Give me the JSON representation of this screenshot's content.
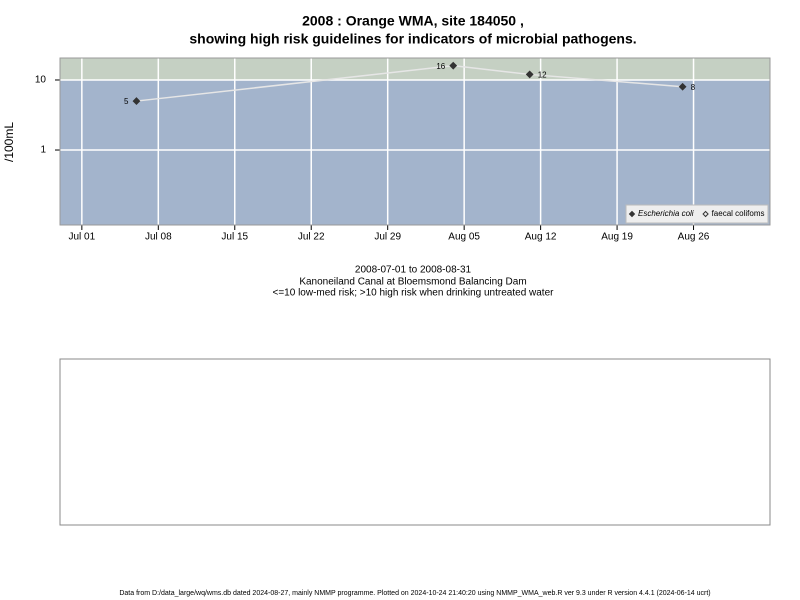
{
  "chart_data": {
    "type": "line",
    "title": "2008 : Orange WMA, site 184050 ,",
    "subtitle": "showing high risk guidelines for indicators of microbial pathogens.",
    "y_label": "/100mL",
    "x_label_lines": [
      "2008-07-01 to 2008-08-31",
      "Kanoneiland Canal at Bloemsmond Balancing Dam",
      "<=10 low-med risk; >10 high risk when drinking untreated water"
    ],
    "x": [
      "Jul 06",
      "Aug 04",
      "Aug 11",
      "Aug 25"
    ],
    "series": [
      {
        "name": "Escherichia coli",
        "color": "#333333",
        "marker": "filled-diamond",
        "values": [
          5,
          16,
          12,
          8
        ]
      },
      {
        "name": "faecal colifoms",
        "color": "#333333",
        "marker": "hollow-diamond",
        "values": [
          null,
          null,
          null,
          null
        ]
      }
    ],
    "line_color": "#e6e6e6",
    "log_y": true,
    "ylim": [
      0.085,
      20.6
    ],
    "yticks": [
      1,
      10
    ],
    "xlim": [
      "Jun 29",
      "Sep 02"
    ],
    "xticks": [
      "Jul 01",
      "Jul 08",
      "Jul 15",
      "Jul 22",
      "Jul 29",
      "Aug 05",
      "Aug 12",
      "Aug 19",
      "Aug 26"
    ],
    "threshold": 10,
    "low_color": "#a3b4cc",
    "high_color": "#c5d0c3",
    "grid": true,
    "legend_position": "bottom-right"
  },
  "footer": "Data from D:/data_large/wq/wms.db dated 2024-08-27, mainly NMMP programme. Plotted on 2024-10-24 21:40:20 using NMMP_WMA_web.R ver 9.3 under R version 4.4.1 (2024-06-14 ucrt)"
}
